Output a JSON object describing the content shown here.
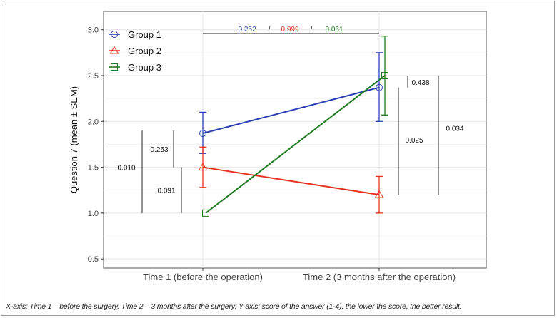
{
  "chart_data": {
    "type": "line",
    "title": "",
    "xlabel": "",
    "ylabel": "Question 7 (mean ± SEM)",
    "categories": [
      "Time 1 (before the operation)",
      "Time 2 (3 months after the operation)"
    ],
    "ylim": [
      0.4,
      3.2
    ],
    "yticks": [
      0.5,
      1.0,
      1.5,
      2.0,
      2.5,
      3.0
    ],
    "ytick_labels": [
      "0.5",
      "1.0",
      "1.5",
      "2.0",
      "2.5",
      "3.0"
    ],
    "grid": true,
    "legend_position": "top-left",
    "series": [
      {
        "name": "Group 1",
        "color": "#2b3fb5",
        "marker": "circle",
        "values": [
          1.87,
          2.37
        ],
        "sem_low": [
          1.65,
          2.0
        ],
        "sem_high": [
          2.1,
          2.75
        ]
      },
      {
        "name": "Group 2",
        "color": "#e8321e",
        "marker": "triangle",
        "values": [
          1.5,
          1.2
        ],
        "sem_low": [
          1.28,
          1.0
        ],
        "sem_high": [
          1.72,
          1.4
        ]
      },
      {
        "name": "Group 3",
        "color": "#1e7a1e",
        "marker": "square",
        "values": [
          1.0,
          2.5
        ],
        "sem_low": [
          1.0,
          2.07
        ],
        "sem_high": [
          1.0,
          2.93
        ]
      }
    ],
    "annotations": {
      "top_pvalues": [
        {
          "text": "0.252",
          "color": "#2b3fb5"
        },
        {
          "text": "/",
          "color": "#222222"
        },
        {
          "text": "0.999",
          "color": "#e8321e"
        },
        {
          "text": "/",
          "color": "#222222"
        },
        {
          "text": "0.061",
          "color": "#1e7a1e"
        }
      ],
      "time1_pvalues": [
        {
          "text": "0.010",
          "y": 1.5,
          "from": 1.0,
          "to": 1.9
        },
        {
          "text": "0.253",
          "y": 1.7,
          "from": 1.5,
          "to": 1.9
        },
        {
          "text": "0.091",
          "y": 1.25,
          "from": 1.0,
          "to": 1.5
        }
      ],
      "time2_pvalues": [
        {
          "text": "0.438",
          "y": 2.43,
          "from": 2.37,
          "to": 2.5
        },
        {
          "text": "0.025",
          "y": 1.8,
          "from": 1.2,
          "to": 2.37
        },
        {
          "text": "0.034",
          "y": 1.93,
          "from": 1.2,
          "to": 2.5
        }
      ]
    }
  },
  "caption": "X-axis: Time 1 – before the surgery, Time 2 – 3 months after the surgery; Y-axis: score of the answer (1-4), the lower the score, the better result."
}
